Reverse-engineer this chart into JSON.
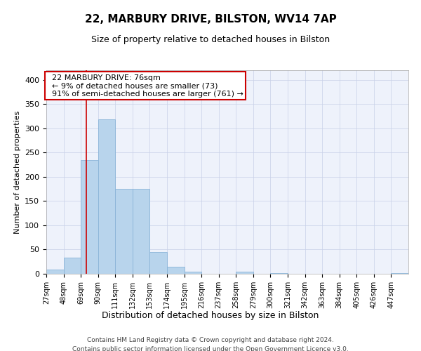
{
  "title1": "22, MARBURY DRIVE, BILSTON, WV14 7AP",
  "title2": "Size of property relative to detached houses in Bilston",
  "xlabel": "Distribution of detached houses by size in Bilston",
  "ylabel": "Number of detached properties",
  "footnote1": "Contains HM Land Registry data © Crown copyright and database right 2024.",
  "footnote2": "Contains public sector information licensed under the Open Government Licence v3.0.",
  "annotation_line1": "22 MARBURY DRIVE: 76sqm",
  "annotation_line2": "← 9% of detached houses are smaller (73)",
  "annotation_line3": "91% of semi-detached houses are larger (761) →",
  "bar_color": "#b8d4ec",
  "bar_edge_color": "#8ab4d8",
  "background_color": "#eef2fb",
  "grid_color": "#c8d0e8",
  "property_line_x": 76,
  "bin_starts": [
    27,
    48,
    69,
    90,
    111,
    132,
    153,
    174,
    195,
    216,
    237,
    258,
    279,
    300,
    321,
    342,
    363,
    384,
    405,
    426,
    447
  ],
  "bin_width": 21,
  "bar_heights": [
    8,
    33,
    235,
    318,
    175,
    175,
    45,
    15,
    5,
    0,
    0,
    4,
    0,
    2,
    0,
    0,
    0,
    0,
    0,
    0,
    1
  ],
  "ylim": [
    0,
    420
  ],
  "yticks": [
    0,
    50,
    100,
    150,
    200,
    250,
    300,
    350,
    400
  ],
  "annotation_box_color": "#ffffff",
  "annotation_box_edge_color": "#cc0000",
  "property_line_color": "#cc0000",
  "title1_fontsize": 11,
  "title2_fontsize": 9,
  "ylabel_fontsize": 8,
  "xlabel_fontsize": 9,
  "ytick_fontsize": 8,
  "xtick_fontsize": 7,
  "footnote_fontsize": 6.5,
  "annot_fontsize": 8
}
